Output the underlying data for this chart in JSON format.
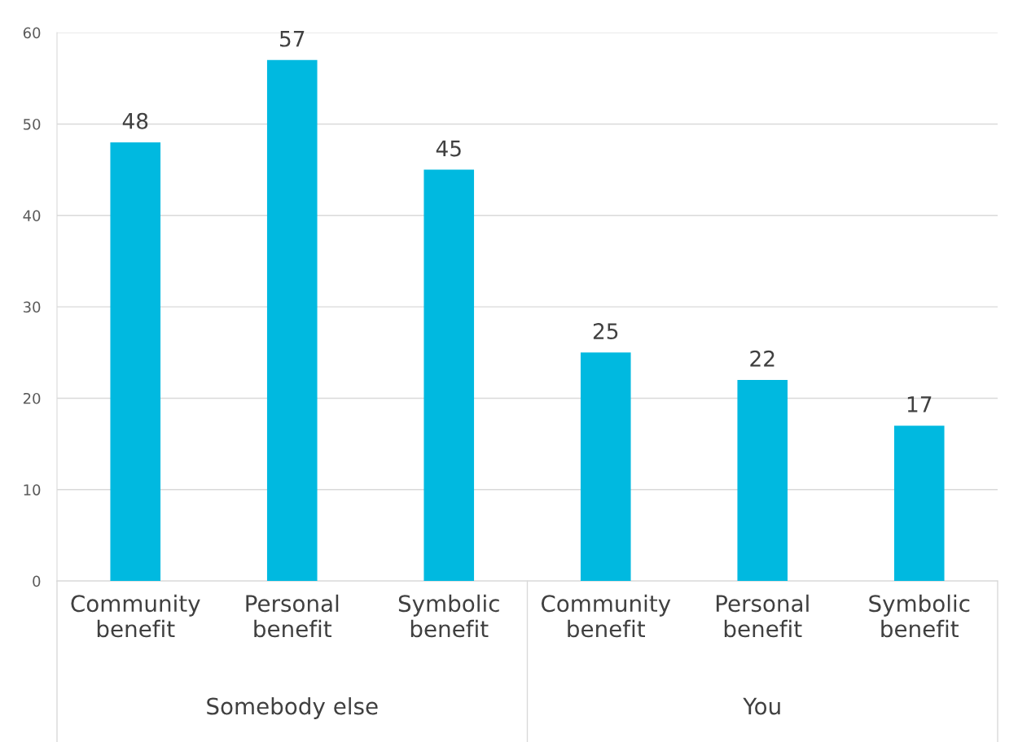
{
  "chart_data": {
    "type": "bar",
    "categories": [
      "Community benefit",
      "Personal benefit",
      "Symbolic benefit",
      "Community benefit",
      "Personal benefit",
      "Symbolic benefit"
    ],
    "values": [
      48,
      57,
      45,
      25,
      22,
      17
    ],
    "color": "#00b9e0",
    "ylim": [
      0,
      60
    ],
    "yticks": [
      0,
      10,
      20,
      30,
      40,
      50,
      60
    ],
    "grid": "y",
    "data_labels": true,
    "annotations": [
      "Somebody else",
      "You"
    ]
  }
}
